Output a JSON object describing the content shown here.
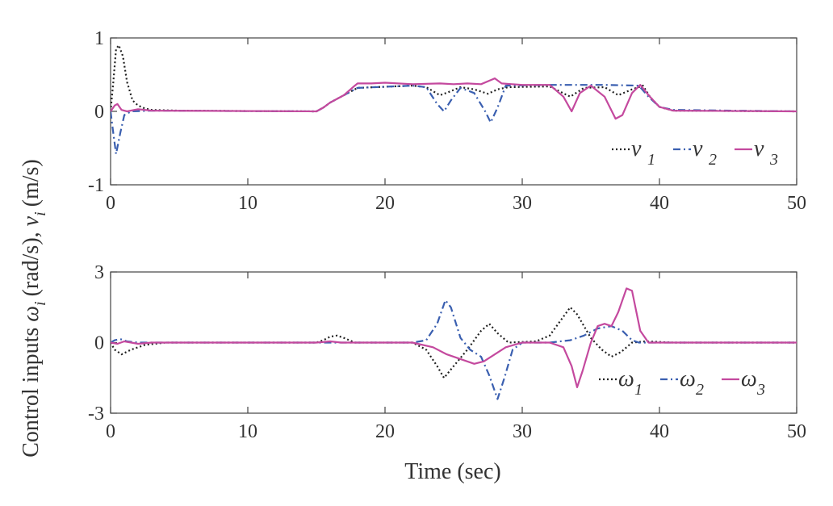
{
  "chart_data": [
    {
      "type": "line",
      "title": "",
      "xlabel": "",
      "ylabel": "",
      "xlim": [
        0,
        50
      ],
      "ylim": [
        -1,
        1
      ],
      "xticks": [
        "0",
        "10",
        "20",
        "30",
        "40",
        "50"
      ],
      "yticks": [
        "-1",
        "0",
        "1"
      ],
      "legend": {
        "placement": "bottom-right",
        "symbol": "ν",
        "subscripts": [
          "1",
          "2",
          "3"
        ]
      },
      "series": [
        {
          "name": "ν1",
          "color": "#222222",
          "style": "dotted",
          "points": [
            [
              0,
              0
            ],
            [
              0.2,
              0.4
            ],
            [
              0.4,
              0.85
            ],
            [
              0.6,
              0.9
            ],
            [
              0.9,
              0.75
            ],
            [
              1.2,
              0.4
            ],
            [
              1.6,
              0.15
            ],
            [
              2.0,
              0.08
            ],
            [
              2.5,
              0.04
            ],
            [
              3,
              0.02
            ],
            [
              5,
              0.01
            ],
            [
              15,
              0.0
            ],
            [
              15.5,
              0.05
            ],
            [
              16,
              0.12
            ],
            [
              17,
              0.22
            ],
            [
              18,
              0.32
            ],
            [
              22,
              0.35
            ],
            [
              23,
              0.33
            ],
            [
              24,
              0.22
            ],
            [
              24.6,
              0.26
            ],
            [
              25.5,
              0.33
            ],
            [
              26.5,
              0.3
            ],
            [
              27.5,
              0.24
            ],
            [
              28.2,
              0.3
            ],
            [
              29,
              0.33
            ],
            [
              32,
              0.34
            ],
            [
              33.5,
              0.2
            ],
            [
              34.5,
              0.32
            ],
            [
              36,
              0.33
            ],
            [
              37,
              0.22
            ],
            [
              38,
              0.3
            ],
            [
              38.8,
              0.35
            ],
            [
              39.3,
              0.2
            ],
            [
              40,
              0.06
            ],
            [
              41,
              0.01
            ],
            [
              50,
              0.0
            ]
          ]
        },
        {
          "name": "ν2",
          "color": "#3a5fb0",
          "style": "dashdot",
          "points": [
            [
              0,
              0
            ],
            [
              0.2,
              -0.3
            ],
            [
              0.4,
              -0.58
            ],
            [
              0.7,
              -0.3
            ],
            [
              1.0,
              -0.05
            ],
            [
              1.5,
              0.0
            ],
            [
              3,
              0.01
            ],
            [
              15,
              0.0
            ],
            [
              15.5,
              0.05
            ],
            [
              16,
              0.12
            ],
            [
              17,
              0.22
            ],
            [
              18,
              0.32
            ],
            [
              22,
              0.35
            ],
            [
              23,
              0.33
            ],
            [
              23.8,
              0.1
            ],
            [
              24.3,
              0.0
            ],
            [
              24.8,
              0.15
            ],
            [
              25.5,
              0.32
            ],
            [
              26.5,
              0.25
            ],
            [
              27.3,
              0.0
            ],
            [
              27.7,
              -0.15
            ],
            [
              28.2,
              0.05
            ],
            [
              28.8,
              0.35
            ],
            [
              32,
              0.36
            ],
            [
              36,
              0.36
            ],
            [
              38.5,
              0.35
            ],
            [
              39.2,
              0.2
            ],
            [
              40,
              0.06
            ],
            [
              41,
              0.02
            ],
            [
              50,
              0.0
            ]
          ]
        },
        {
          "name": "ν3",
          "color": "#c4499e",
          "style": "solid",
          "points": [
            [
              0,
              0
            ],
            [
              0.3,
              0.08
            ],
            [
              0.5,
              0.1
            ],
            [
              0.8,
              0.02
            ],
            [
              1.2,
              0.0
            ],
            [
              2,
              0.03
            ],
            [
              3,
              0.01
            ],
            [
              15,
              0.0
            ],
            [
              15.5,
              0.05
            ],
            [
              16,
              0.12
            ],
            [
              17,
              0.22
            ],
            [
              17.8,
              0.35
            ],
            [
              18,
              0.38
            ],
            [
              19,
              0.38
            ],
            [
              20,
              0.39
            ],
            [
              22,
              0.37
            ],
            [
              24,
              0.38
            ],
            [
              25,
              0.37
            ],
            [
              26,
              0.38
            ],
            [
              27,
              0.37
            ],
            [
              28,
              0.45
            ],
            [
              28.5,
              0.38
            ],
            [
              30,
              0.36
            ],
            [
              32,
              0.36
            ],
            [
              33,
              0.2
            ],
            [
              33.6,
              0.0
            ],
            [
              34.2,
              0.25
            ],
            [
              35,
              0.35
            ],
            [
              36,
              0.2
            ],
            [
              36.8,
              -0.1
            ],
            [
              37.3,
              -0.05
            ],
            [
              38,
              0.25
            ],
            [
              38.6,
              0.36
            ],
            [
              39.3,
              0.2
            ],
            [
              40,
              0.06
            ],
            [
              41,
              0.01
            ],
            [
              50,
              0.0
            ]
          ]
        }
      ]
    },
    {
      "type": "line",
      "title": "",
      "xlabel": "Time (sec)",
      "ylabel": "",
      "xlim": [
        0,
        50
      ],
      "ylim": [
        -3,
        3
      ],
      "xticks": [
        "0",
        "10",
        "20",
        "30",
        "40",
        "50"
      ],
      "yticks": [
        "-3",
        "0",
        "3"
      ],
      "legend": {
        "placement": "bottom-right",
        "symbol": "ω",
        "subscripts": [
          "1",
          "2",
          "3"
        ]
      },
      "series": [
        {
          "name": "ω1",
          "color": "#222222",
          "style": "dotted",
          "points": [
            [
              0,
              0
            ],
            [
              0.3,
              -0.3
            ],
            [
              0.8,
              -0.5
            ],
            [
              1.5,
              -0.3
            ],
            [
              2.5,
              -0.1
            ],
            [
              4,
              0
            ],
            [
              15,
              0
            ],
            [
              15.5,
              0.1
            ],
            [
              16,
              0.25
            ],
            [
              16.5,
              0.3
            ],
            [
              17,
              0.2
            ],
            [
              17.8,
              0
            ],
            [
              22,
              0
            ],
            [
              23,
              -0.3
            ],
            [
              23.8,
              -1.0
            ],
            [
              24.3,
              -1.5
            ],
            [
              25,
              -1.0
            ],
            [
              26,
              -0.3
            ],
            [
              27,
              0.5
            ],
            [
              27.6,
              0.8
            ],
            [
              28.2,
              0.4
            ],
            [
              29,
              0
            ],
            [
              31,
              0.05
            ],
            [
              32,
              0.3
            ],
            [
              33,
              1.1
            ],
            [
              33.5,
              1.5
            ],
            [
              34,
              1.2
            ],
            [
              35,
              0.2
            ],
            [
              35.8,
              -0.3
            ],
            [
              36.5,
              -0.6
            ],
            [
              37.2,
              -0.4
            ],
            [
              38,
              0
            ],
            [
              39,
              0.05
            ],
            [
              41,
              0
            ],
            [
              50,
              0
            ]
          ]
        },
        {
          "name": "ω2",
          "color": "#3a5fb0",
          "style": "dashdot",
          "points": [
            [
              0,
              0
            ],
            [
              0.3,
              0.1
            ],
            [
              0.7,
              0.15
            ],
            [
              1.2,
              0.05
            ],
            [
              2,
              0
            ],
            [
              15,
              0
            ],
            [
              22,
              0
            ],
            [
              23,
              0.1
            ],
            [
              23.8,
              0.8
            ],
            [
              24.4,
              1.8
            ],
            [
              24.8,
              1.5
            ],
            [
              25.5,
              0.2
            ],
            [
              26.2,
              -0.3
            ],
            [
              27,
              -0.6
            ],
            [
              27.6,
              -1.4
            ],
            [
              28.2,
              -2.4
            ],
            [
              28.7,
              -1.5
            ],
            [
              29.3,
              -0.3
            ],
            [
              30,
              0
            ],
            [
              32,
              0
            ],
            [
              33.5,
              0.1
            ],
            [
              34.5,
              0.3
            ],
            [
              35.5,
              0.6
            ],
            [
              36.5,
              0.7
            ],
            [
              37.3,
              0.5
            ],
            [
              38,
              0.1
            ],
            [
              38.5,
              0
            ],
            [
              50,
              0
            ]
          ]
        },
        {
          "name": "ω3",
          "color": "#c4499e",
          "style": "solid",
          "points": [
            [
              0,
              0
            ],
            [
              0.5,
              -0.05
            ],
            [
              1,
              0.05
            ],
            [
              2,
              -0.05
            ],
            [
              3,
              0
            ],
            [
              15,
              0
            ],
            [
              16,
              0.05
            ],
            [
              16.8,
              0
            ],
            [
              22,
              0
            ],
            [
              23.5,
              -0.2
            ],
            [
              24.5,
              -0.5
            ],
            [
              25.5,
              -0.7
            ],
            [
              26.5,
              -0.9
            ],
            [
              27.2,
              -0.8
            ],
            [
              28,
              -0.5
            ],
            [
              28.8,
              -0.2
            ],
            [
              30,
              0
            ],
            [
              32,
              0
            ],
            [
              33,
              -0.2
            ],
            [
              33.6,
              -1.0
            ],
            [
              34,
              -1.9
            ],
            [
              34.4,
              -1.2
            ],
            [
              35,
              0
            ],
            [
              35.5,
              0.7
            ],
            [
              36,
              0.8
            ],
            [
              36.5,
              0.7
            ],
            [
              37,
              1.3
            ],
            [
              37.6,
              2.3
            ],
            [
              38,
              2.2
            ],
            [
              38.6,
              0.5
            ],
            [
              39.2,
              0
            ],
            [
              50,
              0
            ]
          ]
        }
      ]
    }
  ],
  "shared_ylabel": {
    "prefix": "Control inputs",
    "omega": "ω",
    "omega_sub": "i",
    "rad_unit": "(rad/s),",
    "nu": "ν",
    "nu_sub": "i",
    "ms_unit": "(m/s)"
  }
}
